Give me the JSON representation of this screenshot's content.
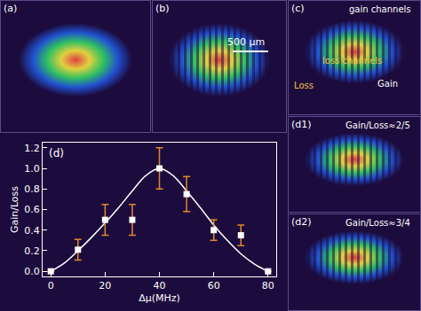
{
  "chart_data": {
    "type": "scatter",
    "annotations": [
      "(d)"
    ],
    "x_label": "Δμ(MHz)",
    "y_label": "Gain/Loss",
    "series": [
      {
        "type": "scatter",
        "marker": "square",
        "color": "#ffffff",
        "x": [
          0,
          10,
          20,
          30,
          40,
          50,
          60,
          70,
          80
        ],
        "values": [
          0,
          0.21,
          0.5,
          0.5,
          1.0,
          0.75,
          0.4,
          0.35,
          0
        ],
        "error": [
          0,
          0.1,
          0.15,
          0.15,
          0.2,
          0.17,
          0.1,
          0.1,
          0
        ]
      },
      {
        "type": "line",
        "line_style": "solid",
        "color": "#ffffff",
        "x": [
          0,
          5,
          10,
          15,
          20,
          25,
          30,
          35,
          40,
          45,
          50,
          55,
          60,
          65,
          70,
          75,
          80
        ],
        "values": [
          0,
          0.08,
          0.2,
          0.33,
          0.47,
          0.62,
          0.78,
          0.93,
          1.0,
          0.93,
          0.78,
          0.62,
          0.45,
          0.3,
          0.17,
          0.07,
          0
        ]
      }
    ],
    "xlim": [
      -3,
      83
    ],
    "xticks": [
      0,
      20,
      40,
      60,
      80
    ],
    "ylim": [
      -0.05,
      1.25
    ],
    "yticks": [
      {
        "value": 0,
        "label": "0.0"
      },
      {
        "value": 0.2,
        "label": "0.2"
      },
      {
        "value": 0.4,
        "label": "0.4"
      },
      {
        "value": 0.6,
        "label": "0.6"
      },
      {
        "value": 0.8,
        "label": "0.8"
      },
      {
        "value": 1.0,
        "label": "1.0"
      },
      {
        "value": 1.2,
        "label": "1.2"
      }
    ],
    "grid": false
  },
  "panels": [
    {
      "label": "(a)"
    },
    {
      "label": "(b)",
      "scale_bar": "500 µm"
    },
    {
      "label": "(c)",
      "annotations": [
        "gain channels",
        "loss channels",
        "Loss",
        "Gain"
      ]
    },
    {
      "label": "(d1)",
      "annotation": "Gain/Loss≈2/5"
    },
    {
      "label": "(d2)",
      "annotation": "Gain/Loss≈3/4"
    }
  ]
}
